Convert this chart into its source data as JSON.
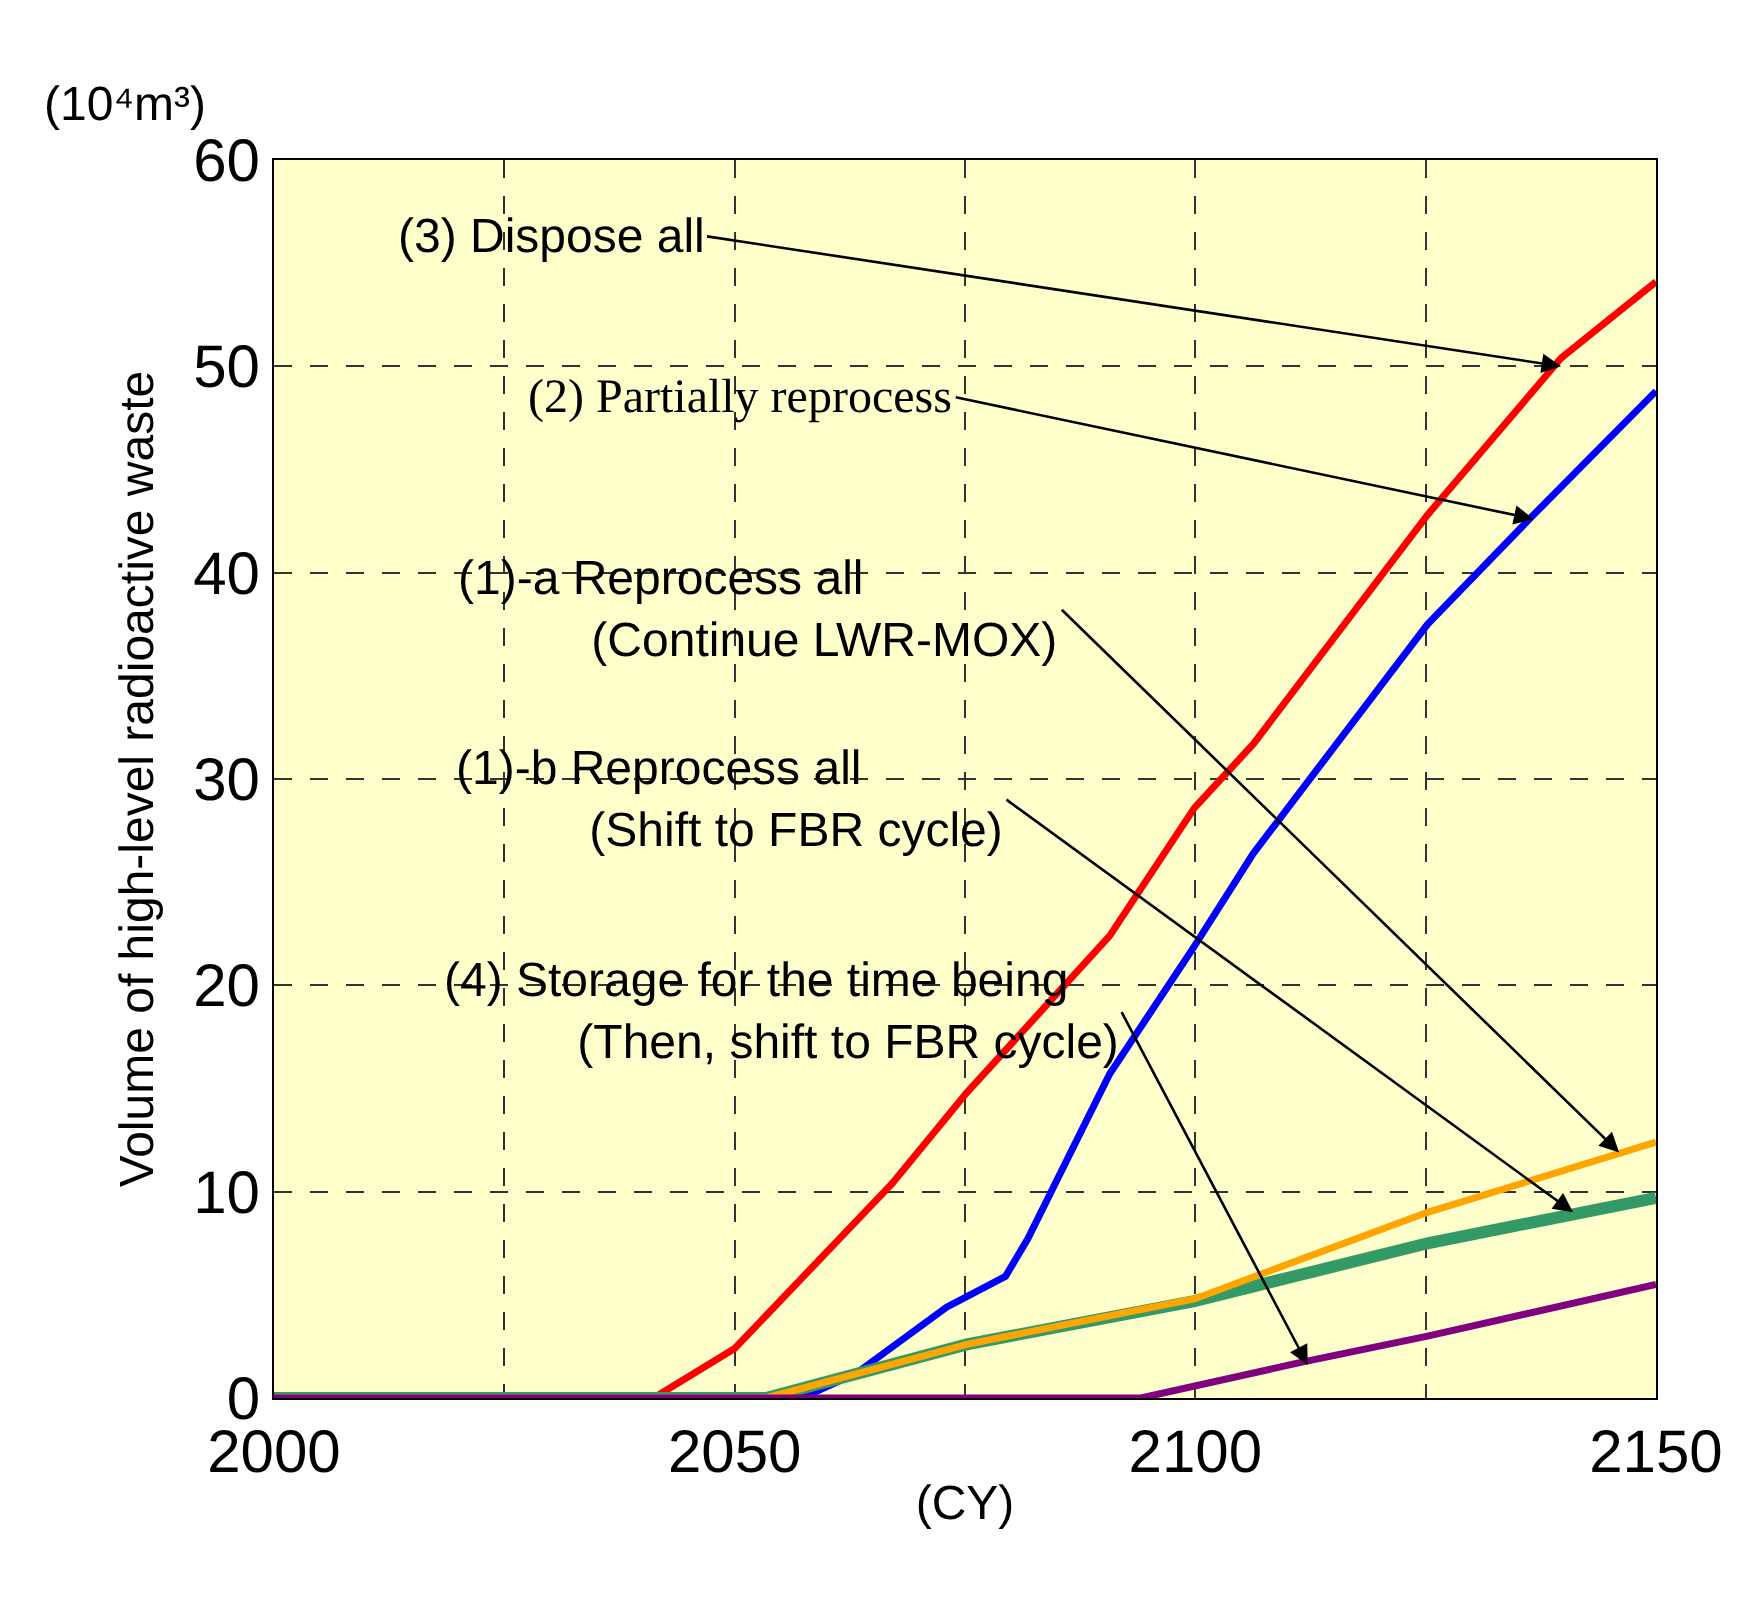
{
  "chart_data": {
    "type": "line",
    "xlabel": "(CY)",
    "ylabel": "Volume of high-level radioactive waste",
    "xlim": [
      2000,
      2150
    ],
    "xticks": [
      2000,
      {
        "value": 2025,
        "label": null
      },
      2050,
      {
        "value": 2075,
        "label": null
      },
      2100,
      {
        "value": 2125,
        "label": null
      },
      2150
    ],
    "ylim": [
      0,
      60
    ],
    "yticks": [
      0,
      10,
      20,
      30,
      40,
      50,
      60
    ],
    "grid": true,
    "legend": false,
    "marker": "none",
    "line_style": "solid",
    "series": [
      {
        "color": "#ff0000",
        "x": [
          2000,
          2041.2,
          2050,
          2067.1,
          2075.2,
          2090.7,
          2099.9,
          2106.3,
          2125.2,
          2139.7,
          2150
        ],
        "values": [
          0,
          0,
          2.4,
          10.4,
          14.8,
          22.4,
          28.6,
          31.7,
          42.8,
          50.4,
          54.1
        ]
      },
      {
        "color": "#0000ff",
        "x": [
          2000,
          2057.3,
          2063.2,
          2073,
          2079.4,
          2081.8,
          2090.7,
          2099.9,
          2106.3,
          2125.2,
          2136.7,
          2150
        ],
        "values": [
          0,
          0,
          1.2,
          4.4,
          5.9,
          7.7,
          15.7,
          21.9,
          26.4,
          37.5,
          42.8,
          48.8
        ]
      },
      {
        "color": "#339966",
        "x": [
          2000,
          2053.4,
          2075.2,
          2099.9,
          2125.2,
          2150
        ],
        "values": [
          0,
          0,
          2.6,
          4.7,
          7.5,
          9.7
        ]
      },
      {
        "color": "#ffa500",
        "x": [
          2000,
          2053.4,
          2075.2,
          2099.9,
          2125.2,
          2150
        ],
        "values": [
          0,
          0,
          2.6,
          4.8,
          9.0,
          12.4
        ]
      },
      {
        "color": "#800080",
        "x": [
          2000,
          2094.1,
          2111.2,
          2125.2,
          2150
        ],
        "values": [
          0,
          0,
          1.7,
          3.0,
          5.5
        ]
      }
    ],
    "annotations": [
      "(10⁴m³)",
      {
        "text": "(3) Dispose all",
        "x": 2139.7,
        "y": 50
      },
      {
        "text": "(2) Partially reprocess",
        "x": 2136.7,
        "y": 42.6
      },
      {
        "text": "(1)-a Reprocess all\n(Continue LWR-MOX)",
        "x": 2146,
        "y": 11.9
      },
      {
        "text": "(1)-b Reprocess all\n(Shift to FBR cycle)",
        "x": 2141,
        "y": 9.0
      },
      {
        "text": "(4) Storage for the time being\n(Then, shift to FBR cycle)",
        "x": 2112.2,
        "y": 1.6
      }
    ]
  }
}
